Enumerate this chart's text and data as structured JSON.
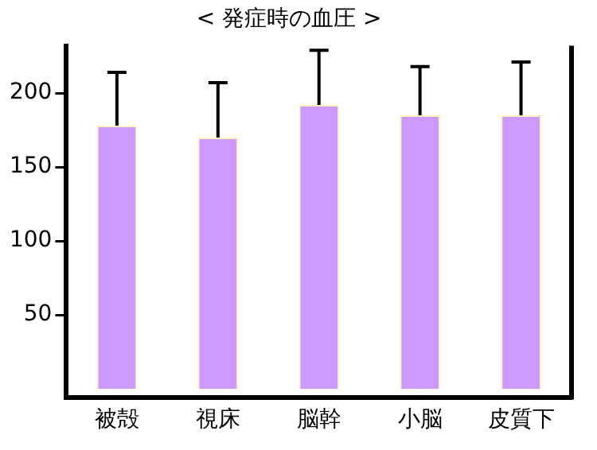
{
  "chart_data": {
    "type": "bar",
    "title": "< 発症時の血圧 >",
    "categories": [
      "被殻",
      "視床",
      "脳幹",
      "小脳",
      "皮質下"
    ],
    "values": [
      178,
      170,
      192,
      185,
      185
    ],
    "errors": [
      [
        178,
        214
      ],
      [
        170,
        207
      ],
      [
        192,
        229
      ],
      [
        185,
        218
      ],
      [
        185,
        221
      ]
    ],
    "color": "#cc99ff",
    "ylim": [
      -6,
      232
    ],
    "yticks": [
      50,
      100,
      150,
      200
    ],
    "grid": false,
    "legend": false
  }
}
